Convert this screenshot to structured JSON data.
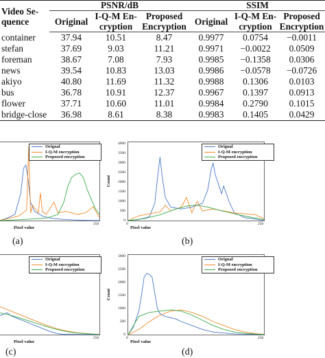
{
  "table": {
    "corner_label": "Video Sequence",
    "corner_line1": "Video Se-",
    "corner_line2": "quence",
    "group1": "PSNR/dB",
    "group2": "SSIM",
    "sub": [
      "Original",
      "I-Q-M En-cryption",
      "Proposed Encryption",
      "Original",
      "I-Q-M En-cryption",
      "Proposed Encryption"
    ],
    "sub_lines": [
      [
        "Original",
        ""
      ],
      [
        "I-Q-M En-",
        "cryption"
      ],
      [
        "Proposed",
        "Encryption"
      ],
      [
        "Original",
        ""
      ],
      [
        "I-Q-M En-",
        "cryption"
      ],
      [
        "Proposed",
        "Encryption"
      ]
    ],
    "rows": [
      {
        "name": "container",
        "vals": [
          "37.94",
          "10.51",
          "8.47",
          "0.9977",
          "0.0754",
          "−0.0011"
        ]
      },
      {
        "name": "stefan",
        "vals": [
          "37.69",
          "9.03",
          "11.21",
          "0.9971",
          "−0.0022",
          "0.0509"
        ]
      },
      {
        "name": "foreman",
        "vals": [
          "38.67",
          "7.08",
          "7.93",
          "0.9985",
          "−0.1358",
          "0.0306"
        ]
      },
      {
        "name": "news",
        "vals": [
          "39.54",
          "10.83",
          "13.03",
          "0.9986",
          "−0.0578",
          "−0.0726"
        ]
      },
      {
        "name": "akiyo",
        "vals": [
          "40.80",
          "11.69",
          "11.32",
          "0.9988",
          "0.1306",
          "0.0103"
        ]
      },
      {
        "name": "bus",
        "vals": [
          "36.78",
          "10.91",
          "12.37",
          "0.9967",
          "0.1397",
          "0.0913"
        ]
      },
      {
        "name": "flower",
        "vals": [
          "37.71",
          "10.60",
          "11.01",
          "0.9984",
          "0.2790",
          "0.1015"
        ]
      },
      {
        "name": "bridge-close",
        "vals": [
          "36.98",
          "8.61",
          "8.38",
          "0.9983",
          "0.1405",
          "0.0429"
        ]
      }
    ]
  },
  "chart_data": [
    {
      "type": "line",
      "panel_label": "(a)",
      "xlabel": "Pixel value",
      "ylabel": "",
      "x_ticks": [
        "256"
      ],
      "y_ticks": [],
      "legend": [
        "Orignal",
        "I-Q-M encryption",
        "Proposed encryption"
      ],
      "colors": [
        "#4a78c8",
        "#f08a2a",
        "#3aaa4a"
      ],
      "series": [
        {
          "name": "Orignal",
          "x": [
            0,
            20,
            40,
            55,
            62,
            68,
            74,
            80,
            90,
            110,
            130,
            160,
            190,
            220,
            240,
            256
          ],
          "y": [
            0,
            80,
            200,
            900,
            1700,
            1800,
            1300,
            600,
            300,
            150,
            80,
            40,
            20,
            10,
            5,
            0
          ]
        },
        {
          "name": "I-Q-M encryption",
          "x": [
            0,
            20,
            50,
            70,
            75,
            80,
            85,
            100,
            105,
            110,
            120,
            140,
            150,
            170,
            200,
            220,
            240,
            256
          ],
          "y": [
            0,
            60,
            150,
            350,
            2400,
            250,
            500,
            250,
            900,
            300,
            200,
            600,
            250,
            300,
            200,
            250,
            450,
            100
          ]
        },
        {
          "name": "Proposed encryption",
          "x": [
            0,
            40,
            80,
            120,
            150,
            165,
            175,
            185,
            195,
            205,
            215,
            225,
            235,
            245,
            256
          ],
          "y": [
            0,
            20,
            50,
            80,
            200,
            600,
            1100,
            1400,
            1500,
            1550,
            1400,
            1000,
            700,
            400,
            200
          ]
        }
      ]
    },
    {
      "type": "line",
      "panel_label": "(b)",
      "xlabel": "Pixel value",
      "ylabel": "Count",
      "x_ticks": [
        "0",
        "256"
      ],
      "y_ticks": [
        "0",
        "500",
        "1000",
        "1500",
        "2000",
        "2500",
        "3000",
        "3500",
        "4000"
      ],
      "ylim": [
        0,
        4000
      ],
      "legend": [
        "Orignal",
        "I-Q-M encryption",
        "Proposed encryption"
      ],
      "colors": [
        "#4a78c8",
        "#f08a2a",
        "#3aaa4a"
      ],
      "series": [
        {
          "name": "Orignal",
          "x": [
            0,
            20,
            40,
            50,
            56,
            60,
            64,
            70,
            80,
            100,
            120,
            140,
            150,
            156,
            160,
            164,
            170,
            176,
            180,
            190,
            200,
            220,
            240,
            256
          ],
          "y": [
            0,
            50,
            200,
            900,
            2400,
            3300,
            2300,
            1200,
            700,
            600,
            700,
            900,
            1600,
            2600,
            3000,
            2400,
            1900,
            1400,
            1800,
            1000,
            400,
            150,
            80,
            0
          ]
        },
        {
          "name": "I-Q-M encryption",
          "x": [
            0,
            20,
            40,
            60,
            70,
            80,
            100,
            110,
            120,
            130,
            140,
            160,
            180,
            200,
            220,
            240,
            256
          ],
          "y": [
            0,
            250,
            350,
            450,
            800,
            500,
            700,
            1200,
            400,
            1000,
            500,
            600,
            500,
            400,
            350,
            300,
            100
          ]
        },
        {
          "name": "Proposed encryption",
          "x": [
            0,
            30,
            60,
            90,
            110,
            125,
            135,
            150,
            170,
            200,
            230,
            256
          ],
          "y": [
            0,
            100,
            300,
            600,
            750,
            800,
            780,
            700,
            550,
            350,
            180,
            50
          ]
        }
      ]
    },
    {
      "type": "line",
      "panel_label": "(c)",
      "xlabel": "Pixel value",
      "ylabel": "",
      "x_ticks": [
        "256"
      ],
      "y_ticks": [],
      "legend": [
        "Orignal",
        "I-Q-M encryption",
        "Proposed encryption"
      ],
      "colors": [
        "#4a78c8",
        "#f08a2a",
        "#3aaa4a"
      ],
      "series": [
        {
          "name": "Orignal",
          "x": [
            0,
            10,
            20,
            30,
            40,
            50,
            60,
            70,
            80,
            90,
            100,
            110,
            120,
            130,
            140,
            150,
            160,
            256
          ],
          "y": [
            600,
            650,
            700,
            600,
            550,
            500,
            450,
            400,
            350,
            300,
            250,
            200,
            150,
            100,
            60,
            30,
            10,
            0
          ]
        },
        {
          "name": "I-Q-M encryption",
          "x": [
            0,
            20,
            40,
            60,
            80,
            100,
            120,
            140,
            160,
            180,
            200,
            220,
            240,
            256
          ],
          "y": [
            900,
            800,
            700,
            600,
            500,
            400,
            300,
            220,
            150,
            100,
            60,
            40,
            20,
            10
          ]
        },
        {
          "name": "Proposed encryption",
          "x": [
            0,
            20,
            40,
            60,
            80,
            100,
            120,
            140,
            160,
            180,
            200,
            220,
            240,
            256
          ],
          "y": [
            700,
            650,
            580,
            500,
            420,
            340,
            260,
            190,
            130,
            80,
            50,
            30,
            15,
            5
          ]
        }
      ]
    },
    {
      "type": "line",
      "panel_label": "(d)",
      "xlabel": "Pixel value",
      "ylabel": "Count",
      "x_ticks": [
        "0",
        "256"
      ],
      "y_ticks": [
        "0",
        "500",
        "1000",
        "1500",
        "2000",
        "2500",
        "3000"
      ],
      "ylim": [
        0,
        3000
      ],
      "legend": [
        "Orignal",
        "I-Q-M encryption",
        "Proposed encryption"
      ],
      "colors": [
        "#4a78c8",
        "#f08a2a",
        "#3aaa4a"
      ],
      "series": [
        {
          "name": "Orignal",
          "x": [
            0,
            10,
            20,
            25,
            30,
            35,
            40,
            45,
            50,
            55,
            60,
            70,
            80,
            90,
            100,
            120,
            140,
            160,
            200,
            256
          ],
          "y": [
            0,
            300,
            900,
            1500,
            2200,
            2350,
            2300,
            2200,
            1600,
            1000,
            800,
            700,
            650,
            600,
            500,
            350,
            200,
            100,
            30,
            0
          ]
        },
        {
          "name": "I-Q-M encryption",
          "x": [
            0,
            20,
            40,
            60,
            80,
            100,
            120,
            140,
            160,
            180,
            200,
            220,
            240,
            256
          ],
          "y": [
            0,
            200,
            500,
            750,
            900,
            950,
            850,
            700,
            500,
            350,
            200,
            100,
            40,
            10
          ]
        },
        {
          "name": "Proposed encryption",
          "x": [
            0,
            20,
            40,
            60,
            80,
            100,
            120,
            140,
            160,
            180,
            200,
            220,
            240,
            256
          ],
          "y": [
            0,
            700,
            850,
            900,
            950,
            900,
            750,
            550,
            350,
            200,
            100,
            50,
            20,
            5
          ]
        }
      ]
    }
  ]
}
